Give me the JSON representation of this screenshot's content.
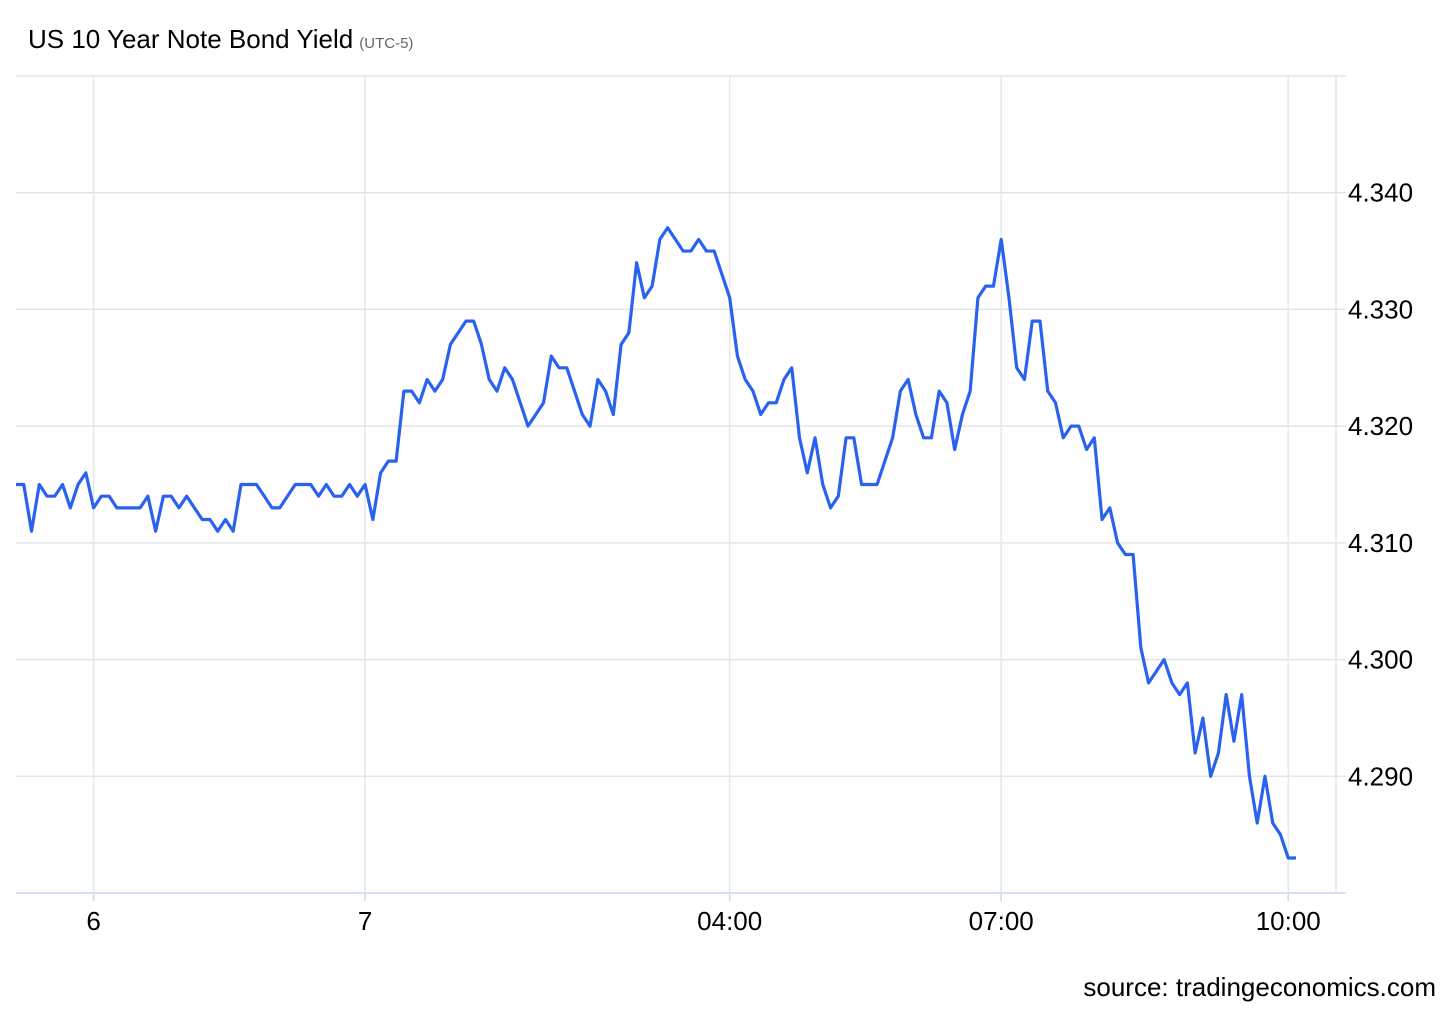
{
  "chart_data": {
    "type": "line",
    "title": "US 10 Year Note Bond Yield",
    "subtitle": "(UTC-5)",
    "source": "source: tradingeconomics.com",
    "color": "#2962ef",
    "grid": true,
    "y_axis_side": "right",
    "categories": [
      null,
      null,
      null,
      null,
      null,
      null,
      null,
      null,
      null,
      null,
      "6",
      null,
      null,
      null,
      null,
      null,
      null,
      null,
      null,
      null,
      null,
      null,
      null,
      null,
      null,
      null,
      null,
      null,
      null,
      null,
      null,
      null,
      null,
      null,
      null,
      null,
      null,
      null,
      null,
      null,
      null,
      null,
      null,
      null,
      null,
      "7",
      null,
      null,
      null,
      null,
      null,
      null,
      null,
      null,
      null,
      null,
      null,
      null,
      null,
      null,
      null,
      null,
      null,
      null,
      null,
      null,
      null,
      null,
      null,
      null,
      null,
      null,
      null,
      null,
      null,
      null,
      null,
      null,
      null,
      null,
      null,
      null,
      null,
      null,
      null,
      null,
      null,
      null,
      null,
      null,
      null,
      null,
      "04:00",
      null,
      null,
      null,
      null,
      null,
      null,
      null,
      null,
      null,
      null,
      null,
      null,
      null,
      null,
      null,
      null,
      null,
      null,
      null,
      null,
      null,
      null,
      null,
      null,
      null,
      null,
      null,
      null,
      null,
      null,
      null,
      null,
      null,
      null,
      "07:00",
      null,
      null,
      null,
      null,
      null,
      null,
      null,
      null,
      null,
      null,
      null,
      null,
      null,
      null,
      null,
      null,
      null,
      null,
      null,
      null,
      null,
      null,
      null,
      null,
      null,
      null,
      null,
      null,
      null,
      null,
      null,
      null,
      null,
      null,
      null,
      null,
      "10:00",
      null
    ],
    "values": [
      4.315,
      4.315,
      4.311,
      4.315,
      4.314,
      4.314,
      4.315,
      4.313,
      4.315,
      4.316,
      4.313,
      4.314,
      4.314,
      4.313,
      4.313,
      4.313,
      4.313,
      4.314,
      4.311,
      4.314,
      4.314,
      4.313,
      4.314,
      4.313,
      4.312,
      4.312,
      4.311,
      4.312,
      4.311,
      4.315,
      4.315,
      4.315,
      4.314,
      4.313,
      4.313,
      4.314,
      4.315,
      4.315,
      4.315,
      4.314,
      4.315,
      4.314,
      4.314,
      4.315,
      4.314,
      4.315,
      4.312,
      4.316,
      4.317,
      4.317,
      4.323,
      4.323,
      4.322,
      4.324,
      4.323,
      4.324,
      4.327,
      4.328,
      4.329,
      4.329,
      4.327,
      4.324,
      4.323,
      4.325,
      4.324,
      4.322,
      4.32,
      4.321,
      4.322,
      4.326,
      4.325,
      4.325,
      4.323,
      4.321,
      4.32,
      4.324,
      4.323,
      4.321,
      4.327,
      4.328,
      4.334,
      4.331,
      4.332,
      4.336,
      4.337,
      4.336,
      4.335,
      4.335,
      4.336,
      4.335,
      4.335,
      4.333,
      4.331,
      4.326,
      4.324,
      4.323,
      4.321,
      4.322,
      4.322,
      4.324,
      4.325,
      4.319,
      4.316,
      4.319,
      4.315,
      4.313,
      4.314,
      4.319,
      4.319,
      4.315,
      4.315,
      4.315,
      4.317,
      4.319,
      4.323,
      4.324,
      4.321,
      4.319,
      4.319,
      4.323,
      4.322,
      4.318,
      4.321,
      4.323,
      4.331,
      4.332,
      4.332,
      4.336,
      4.331,
      4.325,
      4.324,
      4.329,
      4.329,
      4.323,
      4.322,
      4.319,
      4.32,
      4.32,
      4.318,
      4.319,
      4.312,
      4.313,
      4.31,
      4.309,
      4.309,
      4.301,
      4.298,
      4.299,
      4.3,
      4.298,
      4.297,
      4.298,
      4.292,
      4.295,
      4.29,
      4.292,
      4.297,
      4.293,
      4.297,
      4.29,
      4.286,
      4.29,
      4.286,
      4.285,
      4.283,
      4.283
    ],
    "ylim": [
      4.28,
      4.35
    ],
    "yticks": [
      {
        "value": 4.29,
        "label": "4.290"
      },
      {
        "value": 4.3,
        "label": "4.300"
      },
      {
        "value": 4.31,
        "label": "4.310"
      },
      {
        "value": 4.32,
        "label": "4.320"
      },
      {
        "value": 4.33,
        "label": "4.330"
      },
      {
        "value": 4.34,
        "label": "4.340"
      }
    ]
  }
}
